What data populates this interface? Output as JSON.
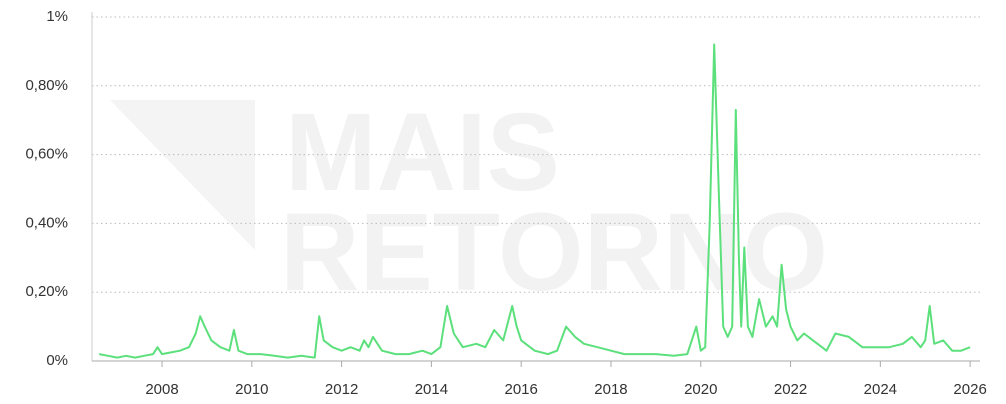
{
  "chart_data": {
    "type": "line",
    "watermark": [
      "MAIS",
      "RETORNO"
    ],
    "x": [
      2006.6,
      2006.8,
      2007.0,
      2007.2,
      2007.4,
      2007.6,
      2007.8,
      2007.9,
      2008.0,
      2008.2,
      2008.4,
      2008.6,
      2008.75,
      2008.85,
      2008.95,
      2009.1,
      2009.3,
      2009.5,
      2009.6,
      2009.7,
      2009.9,
      2010.2,
      2010.5,
      2010.8,
      2011.1,
      2011.4,
      2011.5,
      2011.6,
      2011.8,
      2012.0,
      2012.2,
      2012.4,
      2012.5,
      2012.6,
      2012.7,
      2012.9,
      2013.2,
      2013.5,
      2013.8,
      2014.0,
      2014.2,
      2014.35,
      2014.5,
      2014.7,
      2015.0,
      2015.2,
      2015.4,
      2015.6,
      2015.8,
      2015.9,
      2016.0,
      2016.3,
      2016.6,
      2016.8,
      2017.0,
      2017.2,
      2017.4,
      2017.7,
      2018.0,
      2018.3,
      2018.6,
      2019.0,
      2019.4,
      2019.7,
      2019.9,
      2020.0,
      2020.1,
      2020.2,
      2020.3,
      2020.4,
      2020.5,
      2020.6,
      2020.7,
      2020.78,
      2020.85,
      2020.9,
      2020.97,
      2021.05,
      2021.15,
      2021.3,
      2021.45,
      2021.6,
      2021.7,
      2021.8,
      2021.9,
      2022.0,
      2022.15,
      2022.3,
      2022.5,
      2022.7,
      2022.8,
      2023.0,
      2023.3,
      2023.6,
      2023.9,
      2024.2,
      2024.5,
      2024.7,
      2024.9,
      2025.0,
      2025.1,
      2025.2,
      2025.4,
      2025.6,
      2025.8,
      2026.0
    ],
    "values": [
      0.02,
      0.015,
      0.01,
      0.015,
      0.01,
      0.015,
      0.02,
      0.04,
      0.02,
      0.025,
      0.03,
      0.04,
      0.08,
      0.13,
      0.1,
      0.06,
      0.04,
      0.03,
      0.09,
      0.03,
      0.02,
      0.02,
      0.015,
      0.01,
      0.015,
      0.01,
      0.13,
      0.06,
      0.04,
      0.03,
      0.04,
      0.03,
      0.06,
      0.04,
      0.07,
      0.03,
      0.02,
      0.02,
      0.03,
      0.02,
      0.04,
      0.16,
      0.08,
      0.04,
      0.05,
      0.04,
      0.09,
      0.06,
      0.16,
      0.1,
      0.06,
      0.03,
      0.02,
      0.03,
      0.1,
      0.07,
      0.05,
      0.04,
      0.03,
      0.02,
      0.02,
      0.02,
      0.015,
      0.02,
      0.1,
      0.03,
      0.04,
      0.4,
      0.92,
      0.5,
      0.1,
      0.07,
      0.1,
      0.73,
      0.3,
      0.1,
      0.33,
      0.1,
      0.07,
      0.18,
      0.1,
      0.13,
      0.1,
      0.28,
      0.15,
      0.1,
      0.06,
      0.08,
      0.06,
      0.04,
      0.03,
      0.08,
      0.07,
      0.04,
      0.04,
      0.04,
      0.05,
      0.07,
      0.04,
      0.06,
      0.16,
      0.05,
      0.06,
      0.03,
      0.03,
      0.04
    ],
    "color": "#5ce07c",
    "xlim": [
      2006.44,
      2026.22
    ],
    "xticks": [
      2008,
      2010,
      2012,
      2014,
      2016,
      2018,
      2020,
      2022,
      2024,
      2026
    ],
    "ylim": [
      0,
      1
    ],
    "yticks": [
      {
        "value": 0,
        "label": "0%"
      },
      {
        "value": 0.2,
        "label": "0,20%"
      },
      {
        "value": 0.4,
        "label": "0,40%"
      },
      {
        "value": 0.6,
        "label": "0,60%"
      },
      {
        "value": 0.8,
        "label": "0,80%"
      },
      {
        "value": 1,
        "label": "1%"
      }
    ],
    "grid": true
  }
}
